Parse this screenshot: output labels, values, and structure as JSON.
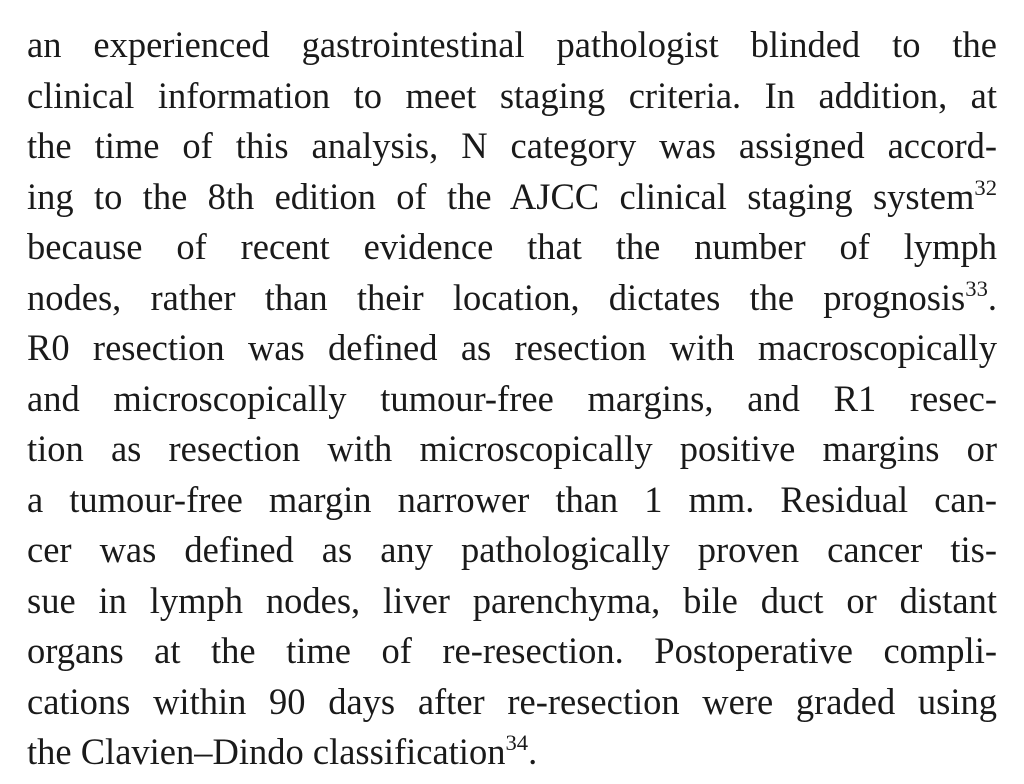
{
  "paragraph": {
    "lines": [
      {
        "text": "an experienced gastrointestinal pathologist blinded to the"
      },
      {
        "text": "clinical information to meet staging criteria. In addition, at"
      },
      {
        "text": "the time of this analysis, N category was assigned accord-"
      },
      {
        "text": "ing to the 8th edition of the AJCC clinical staging system",
        "ref": "32"
      },
      {
        "text": "because of recent evidence that the number of lymph"
      },
      {
        "text": "nodes, rather than their location, dictates the prognosis",
        "ref": "33",
        "tail": "."
      },
      {
        "text": "R0 resection was defined as resection with macroscopically"
      },
      {
        "text": "and microscopically tumour-free margins, and R1 resec-"
      },
      {
        "text": "tion as resection with microscopically positive margins or"
      },
      {
        "text": "a tumour-free margin narrower than 1 mm. Residual can-"
      },
      {
        "text": "cer was defined as any pathologically proven cancer tis-"
      },
      {
        "text": "sue in lymph nodes, liver parenchyma, bile duct or distant"
      },
      {
        "text": "organs at the time of re-resection. Postoperative compli-"
      },
      {
        "text": "cations within 90 days after re-resection were graded using"
      },
      {
        "text": "the Clavien–Dindo classification",
        "ref": "34",
        "tail": "."
      }
    ]
  }
}
